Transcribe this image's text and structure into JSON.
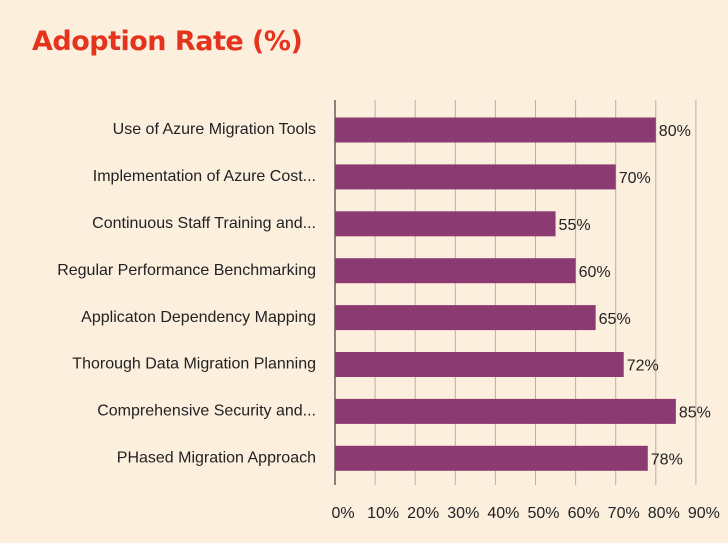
{
  "title": "Adoption Rate (%)",
  "colors": {
    "background": "#fcefde",
    "title": "#e5341e",
    "bar": "#8b3a72",
    "grid": "#b9b0a6",
    "axis": "#3a3a3a",
    "text": "#222222"
  },
  "chart_data": {
    "type": "bar",
    "orientation": "horizontal",
    "title": "Adoption Rate (%)",
    "xlabel": "",
    "ylabel": "",
    "categories": [
      "Use of Azure Migration Tools",
      "Implementation of Azure Cost...",
      "Continuous Staff Training and...",
      "Regular Performance Benchmarking",
      "Applicaton Dependency Mapping",
      "Thorough Data Migration Planning",
      "Comprehensive Security and...",
      "PHased Migration Approach"
    ],
    "values": [
      80,
      70,
      55,
      60,
      65,
      72,
      85,
      78
    ],
    "value_labels": [
      "80%",
      "70%",
      "55%",
      "60%",
      "65%",
      "72%",
      "85%",
      "78%"
    ],
    "xlim": [
      0,
      90
    ],
    "x_ticks": [
      0,
      10,
      20,
      30,
      40,
      50,
      60,
      70,
      80,
      90
    ],
    "x_tick_labels": [
      "0%",
      "10%",
      "20%",
      "30%",
      "40%",
      "50%",
      "60%",
      "70%",
      "80%",
      "90%"
    ],
    "grid": "vertical",
    "legend": "none"
  }
}
